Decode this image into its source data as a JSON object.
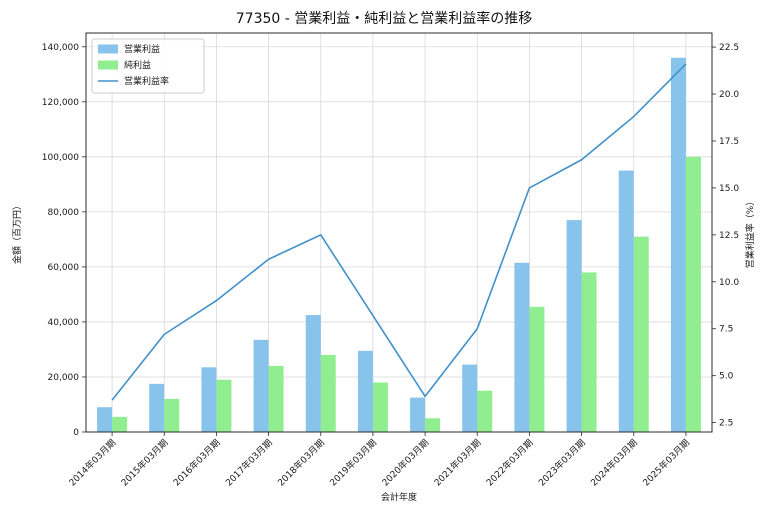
{
  "chart_data": {
    "type": "bar+line",
    "title": "77350 - 営業利益・純利益と営業利益率の推移",
    "xlabel": "会計年度",
    "ylabel_left": "金額（百万円）",
    "ylabel_right": "営業利益率（%）",
    "categories": [
      "2014年03月期",
      "2015年03月期",
      "2016年03月期",
      "2017年03月期",
      "2018年03月期",
      "2019年03月期",
      "2020年03月期",
      "2021年03月期",
      "2022年03月期",
      "2023年03月期",
      "2024年03月期",
      "2025年03月期"
    ],
    "series": [
      {
        "name": "営業利益",
        "type": "bar",
        "axis": "left",
        "color": "#87c3ea",
        "values": [
          9000,
          17500,
          23500,
          33500,
          42500,
          29500,
          12500,
          24500,
          61500,
          77000,
          95000,
          136000
        ]
      },
      {
        "name": "純利益",
        "type": "bar",
        "axis": "left",
        "color": "#90ee90",
        "values": [
          5500,
          12000,
          19000,
          24000,
          28000,
          18000,
          5000,
          15000,
          45500,
          58000,
          71000,
          100000
        ]
      },
      {
        "name": "営業利益率",
        "type": "line",
        "axis": "right",
        "color": "#4191c9",
        "values": [
          3.7,
          7.2,
          9.0,
          11.2,
          12.5,
          8.2,
          3.9,
          7.5,
          15.0,
          16.5,
          18.8,
          21.6
        ]
      }
    ],
    "ylim_left": [
      0,
      145000
    ],
    "yticks_left": [
      0,
      20000,
      40000,
      60000,
      80000,
      100000,
      120000,
      140000
    ],
    "ylim_right": [
      2.0,
      23.25
    ],
    "yticks_right": [
      2.5,
      5.0,
      7.5,
      10.0,
      12.5,
      15.0,
      17.5,
      20.0,
      22.5
    ],
    "grid": true,
    "legend_position": "upper left"
  }
}
